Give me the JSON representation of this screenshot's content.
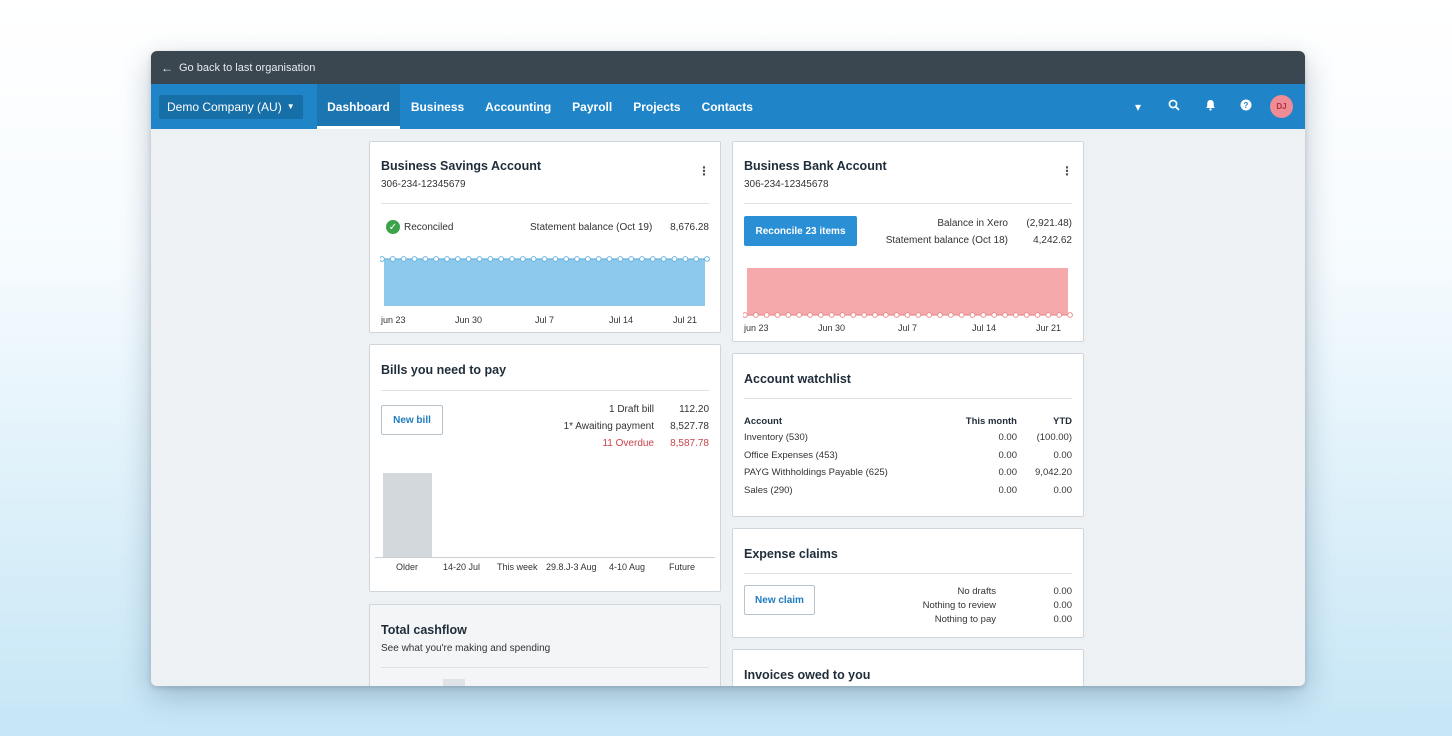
{
  "topbar": {
    "back_label": "Go back to last organisation"
  },
  "nav": {
    "org": "Demo Company (AU)",
    "items": [
      "Dashboard",
      "Business",
      "Accounting",
      "Payroll",
      "Projects",
      "Contacts"
    ],
    "avatar": "DJ"
  },
  "savings": {
    "title": "Business Savings Account",
    "number": "306-234-12345679",
    "status": "Reconciled",
    "statement_label": "Statement balance (Oct 19)",
    "statement_value": "8,676.28",
    "x_labels": [
      "jun 23",
      "Jun 30",
      "Jul 7",
      "Jul 14",
      "Jul 21"
    ]
  },
  "bank": {
    "title": "Business Bank Account",
    "number": "306-234-12345678",
    "reconcile_button": "Reconcile 23 items",
    "balance_xero_label": "Balance in Xero",
    "balance_xero_value": "(2,921.48)",
    "statement_label": "Statement balance (Oct 18)",
    "statement_value": "4,242.62",
    "x_labels": [
      "jun 23",
      "Jun 30",
      "Jul 7",
      "Jul 14",
      "Jur 21"
    ]
  },
  "bills": {
    "title": "Bills you need to pay",
    "new_button": "New bill",
    "rows": [
      {
        "label": "1 Draft bill",
        "value": "112.20"
      },
      {
        "label": "1* Awaiting payment",
        "value": "8,527.78"
      },
      {
        "label": "11 Overdue",
        "value": "8,587.78"
      }
    ],
    "chart_labels": [
      "Older",
      "14-20 Jul",
      "This week",
      "29.8.J-3 Aug",
      "4-10 Aug",
      "Future"
    ]
  },
  "watchlist": {
    "title": "Account watchlist",
    "headers": [
      "Account",
      "This month",
      "YTD"
    ],
    "rows": [
      {
        "account": "Inventory (530)",
        "month": "0.00",
        "ytd": "(100.00)"
      },
      {
        "account": "Office Expenses (453)",
        "month": "0.00",
        "ytd": "0.00"
      },
      {
        "account": "PAYG Withholdings Payable (625)",
        "month": "0.00",
        "ytd": "9,042.20"
      },
      {
        "account": "Sales (290)",
        "month": "0.00",
        "ytd": "0.00"
      }
    ]
  },
  "expense": {
    "title": "Expense claims",
    "new_button": "New claim",
    "rows": [
      {
        "label": "No drafts",
        "value": "0.00"
      },
      {
        "label": "Nothing to review",
        "value": "0.00"
      },
      {
        "label": "Nothing to pay",
        "value": "0.00"
      }
    ]
  },
  "cashflow": {
    "title": "Total cashflow",
    "subtitle": "See what you're making and spending"
  },
  "invoices": {
    "title": "Invoices owed to you"
  },
  "colors": {
    "nav": "#1f85c8",
    "savings_fill": "#8cc9ec",
    "bank_fill": "#f6a9ab",
    "overdue": "#c9434a"
  }
}
